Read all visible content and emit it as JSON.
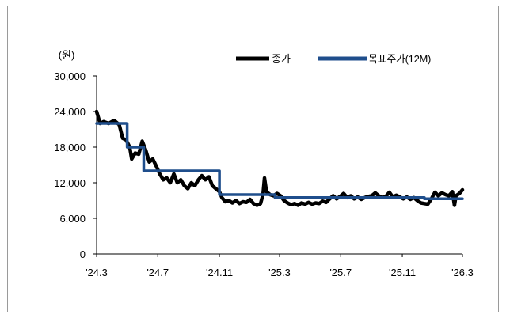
{
  "chart_data": {
    "type": "line",
    "unit_label": "(원)",
    "x_tick_labels": [
      "'24.3",
      "'24.7",
      "'24.11",
      "'25.3",
      "'25.7",
      "'25.11",
      "'26.3"
    ],
    "x_ticks": [
      "2024-03",
      "2024-07",
      "2024-11",
      "2025-03",
      "2025-07",
      "2025-11",
      "2026-03"
    ],
    "y_tick_labels": [
      "0",
      "6,000",
      "12,000",
      "18,000",
      "24,000",
      "30,000"
    ],
    "ylim": [
      0,
      30000
    ],
    "xlim": [
      "2024-03-01",
      "2026-03-01"
    ],
    "grid": false,
    "legend_position": "top-right",
    "series": [
      {
        "name": "종가",
        "color": "#000000",
        "points": [
          [
            "2024-03-01",
            24000
          ],
          [
            "2024-03-08",
            22000
          ],
          [
            "2024-03-15",
            22300
          ],
          [
            "2024-03-25",
            22000
          ],
          [
            "2024-04-05",
            22500
          ],
          [
            "2024-04-15",
            21800
          ],
          [
            "2024-04-22",
            19500
          ],
          [
            "2024-04-29",
            19200
          ],
          [
            "2024-05-06",
            18000
          ],
          [
            "2024-05-10",
            16000
          ],
          [
            "2024-05-17",
            17000
          ],
          [
            "2024-05-24",
            16800
          ],
          [
            "2024-05-31",
            19000
          ],
          [
            "2024-06-07",
            17500
          ],
          [
            "2024-06-14",
            15500
          ],
          [
            "2024-06-21",
            16000
          ],
          [
            "2024-06-28",
            14800
          ],
          [
            "2024-07-05",
            13500
          ],
          [
            "2024-07-12",
            12500
          ],
          [
            "2024-07-19",
            12800
          ],
          [
            "2024-07-26",
            12000
          ],
          [
            "2024-08-02",
            13500
          ],
          [
            "2024-08-09",
            12000
          ],
          [
            "2024-08-16",
            12500
          ],
          [
            "2024-08-23",
            11500
          ],
          [
            "2024-08-30",
            11000
          ],
          [
            "2024-09-06",
            12000
          ],
          [
            "2024-09-13",
            11500
          ],
          [
            "2024-09-20",
            12500
          ],
          [
            "2024-09-27",
            13200
          ],
          [
            "2024-10-04",
            12500
          ],
          [
            "2024-10-11",
            13000
          ],
          [
            "2024-10-18",
            11500
          ],
          [
            "2024-10-25",
            11000
          ],
          [
            "2024-11-01",
            10500
          ],
          [
            "2024-11-06",
            9500
          ],
          [
            "2024-11-13",
            8800
          ],
          [
            "2024-11-20",
            9000
          ],
          [
            "2024-11-27",
            8600
          ],
          [
            "2024-12-04",
            9000
          ],
          [
            "2024-12-11",
            8500
          ],
          [
            "2024-12-18",
            8800
          ],
          [
            "2024-12-25",
            8700
          ],
          [
            "2025-01-01",
            9200
          ],
          [
            "2025-01-08",
            8500
          ],
          [
            "2025-01-15",
            8200
          ],
          [
            "2025-01-22",
            8500
          ],
          [
            "2025-01-27",
            10000
          ],
          [
            "2025-01-30",
            12800
          ],
          [
            "2025-02-03",
            10500
          ],
          [
            "2025-02-10",
            10000
          ],
          [
            "2025-02-17",
            9800
          ],
          [
            "2025-02-24",
            10200
          ],
          [
            "2025-03-03",
            9800
          ],
          [
            "2025-03-10",
            9000
          ],
          [
            "2025-03-17",
            8600
          ],
          [
            "2025-03-24",
            8300
          ],
          [
            "2025-03-31",
            8500
          ],
          [
            "2025-04-07",
            8200
          ],
          [
            "2025-04-14",
            8600
          ],
          [
            "2025-04-21",
            8400
          ],
          [
            "2025-04-28",
            8700
          ],
          [
            "2025-05-05",
            8400
          ],
          [
            "2025-05-12",
            8600
          ],
          [
            "2025-05-19",
            8500
          ],
          [
            "2025-05-26",
            8900
          ],
          [
            "2025-06-02",
            8700
          ],
          [
            "2025-06-09",
            9300
          ],
          [
            "2025-06-16",
            9800
          ],
          [
            "2025-06-23",
            9300
          ],
          [
            "2025-06-30",
            9700
          ],
          [
            "2025-07-07",
            10200
          ],
          [
            "2025-07-14",
            9500
          ],
          [
            "2025-07-21",
            9800
          ],
          [
            "2025-07-28",
            9300
          ],
          [
            "2025-08-04",
            9600
          ],
          [
            "2025-08-11",
            9200
          ],
          [
            "2025-08-18",
            9500
          ],
          [
            "2025-08-25",
            9700
          ],
          [
            "2025-09-01",
            9800
          ],
          [
            "2025-09-08",
            10300
          ],
          [
            "2025-09-15",
            9800
          ],
          [
            "2025-09-22",
            9500
          ],
          [
            "2025-09-29",
            9700
          ],
          [
            "2025-10-06",
            10400
          ],
          [
            "2025-10-13",
            9600
          ],
          [
            "2025-10-20",
            9900
          ],
          [
            "2025-10-27",
            9600
          ],
          [
            "2025-11-03",
            9300
          ],
          [
            "2025-11-10",
            9600
          ],
          [
            "2025-11-17",
            9200
          ],
          [
            "2025-11-24",
            9500
          ],
          [
            "2025-12-01",
            9000
          ],
          [
            "2025-12-08",
            8600
          ],
          [
            "2025-12-15",
            8500
          ],
          [
            "2025-12-22",
            8400
          ],
          [
            "2025-12-29",
            9300
          ],
          [
            "2026-01-05",
            10400
          ],
          [
            "2026-01-12",
            9800
          ],
          [
            "2026-01-19",
            10300
          ],
          [
            "2026-01-26",
            10000
          ],
          [
            "2026-02-02",
            9800
          ],
          [
            "2026-02-09",
            10500
          ],
          [
            "2026-02-13",
            8200
          ],
          [
            "2026-02-16",
            9800
          ],
          [
            "2026-02-23",
            10200
          ],
          [
            "2026-03-01",
            10800
          ]
        ]
      },
      {
        "name": "목표주가(12M)",
        "color": "#1f4e8c",
        "points": [
          [
            "2024-03-01",
            22000
          ],
          [
            "2024-05-01",
            22000
          ],
          [
            "2024-05-01",
            18000
          ],
          [
            "2024-06-03",
            18000
          ],
          [
            "2024-06-03",
            14000
          ],
          [
            "2024-11-01",
            14000
          ],
          [
            "2024-11-01",
            10000
          ],
          [
            "2025-02-20",
            10000
          ],
          [
            "2025-02-20",
            9500
          ],
          [
            "2025-12-15",
            9500
          ],
          [
            "2025-12-15",
            9300
          ],
          [
            "2026-03-01",
            9300
          ]
        ]
      }
    ]
  }
}
